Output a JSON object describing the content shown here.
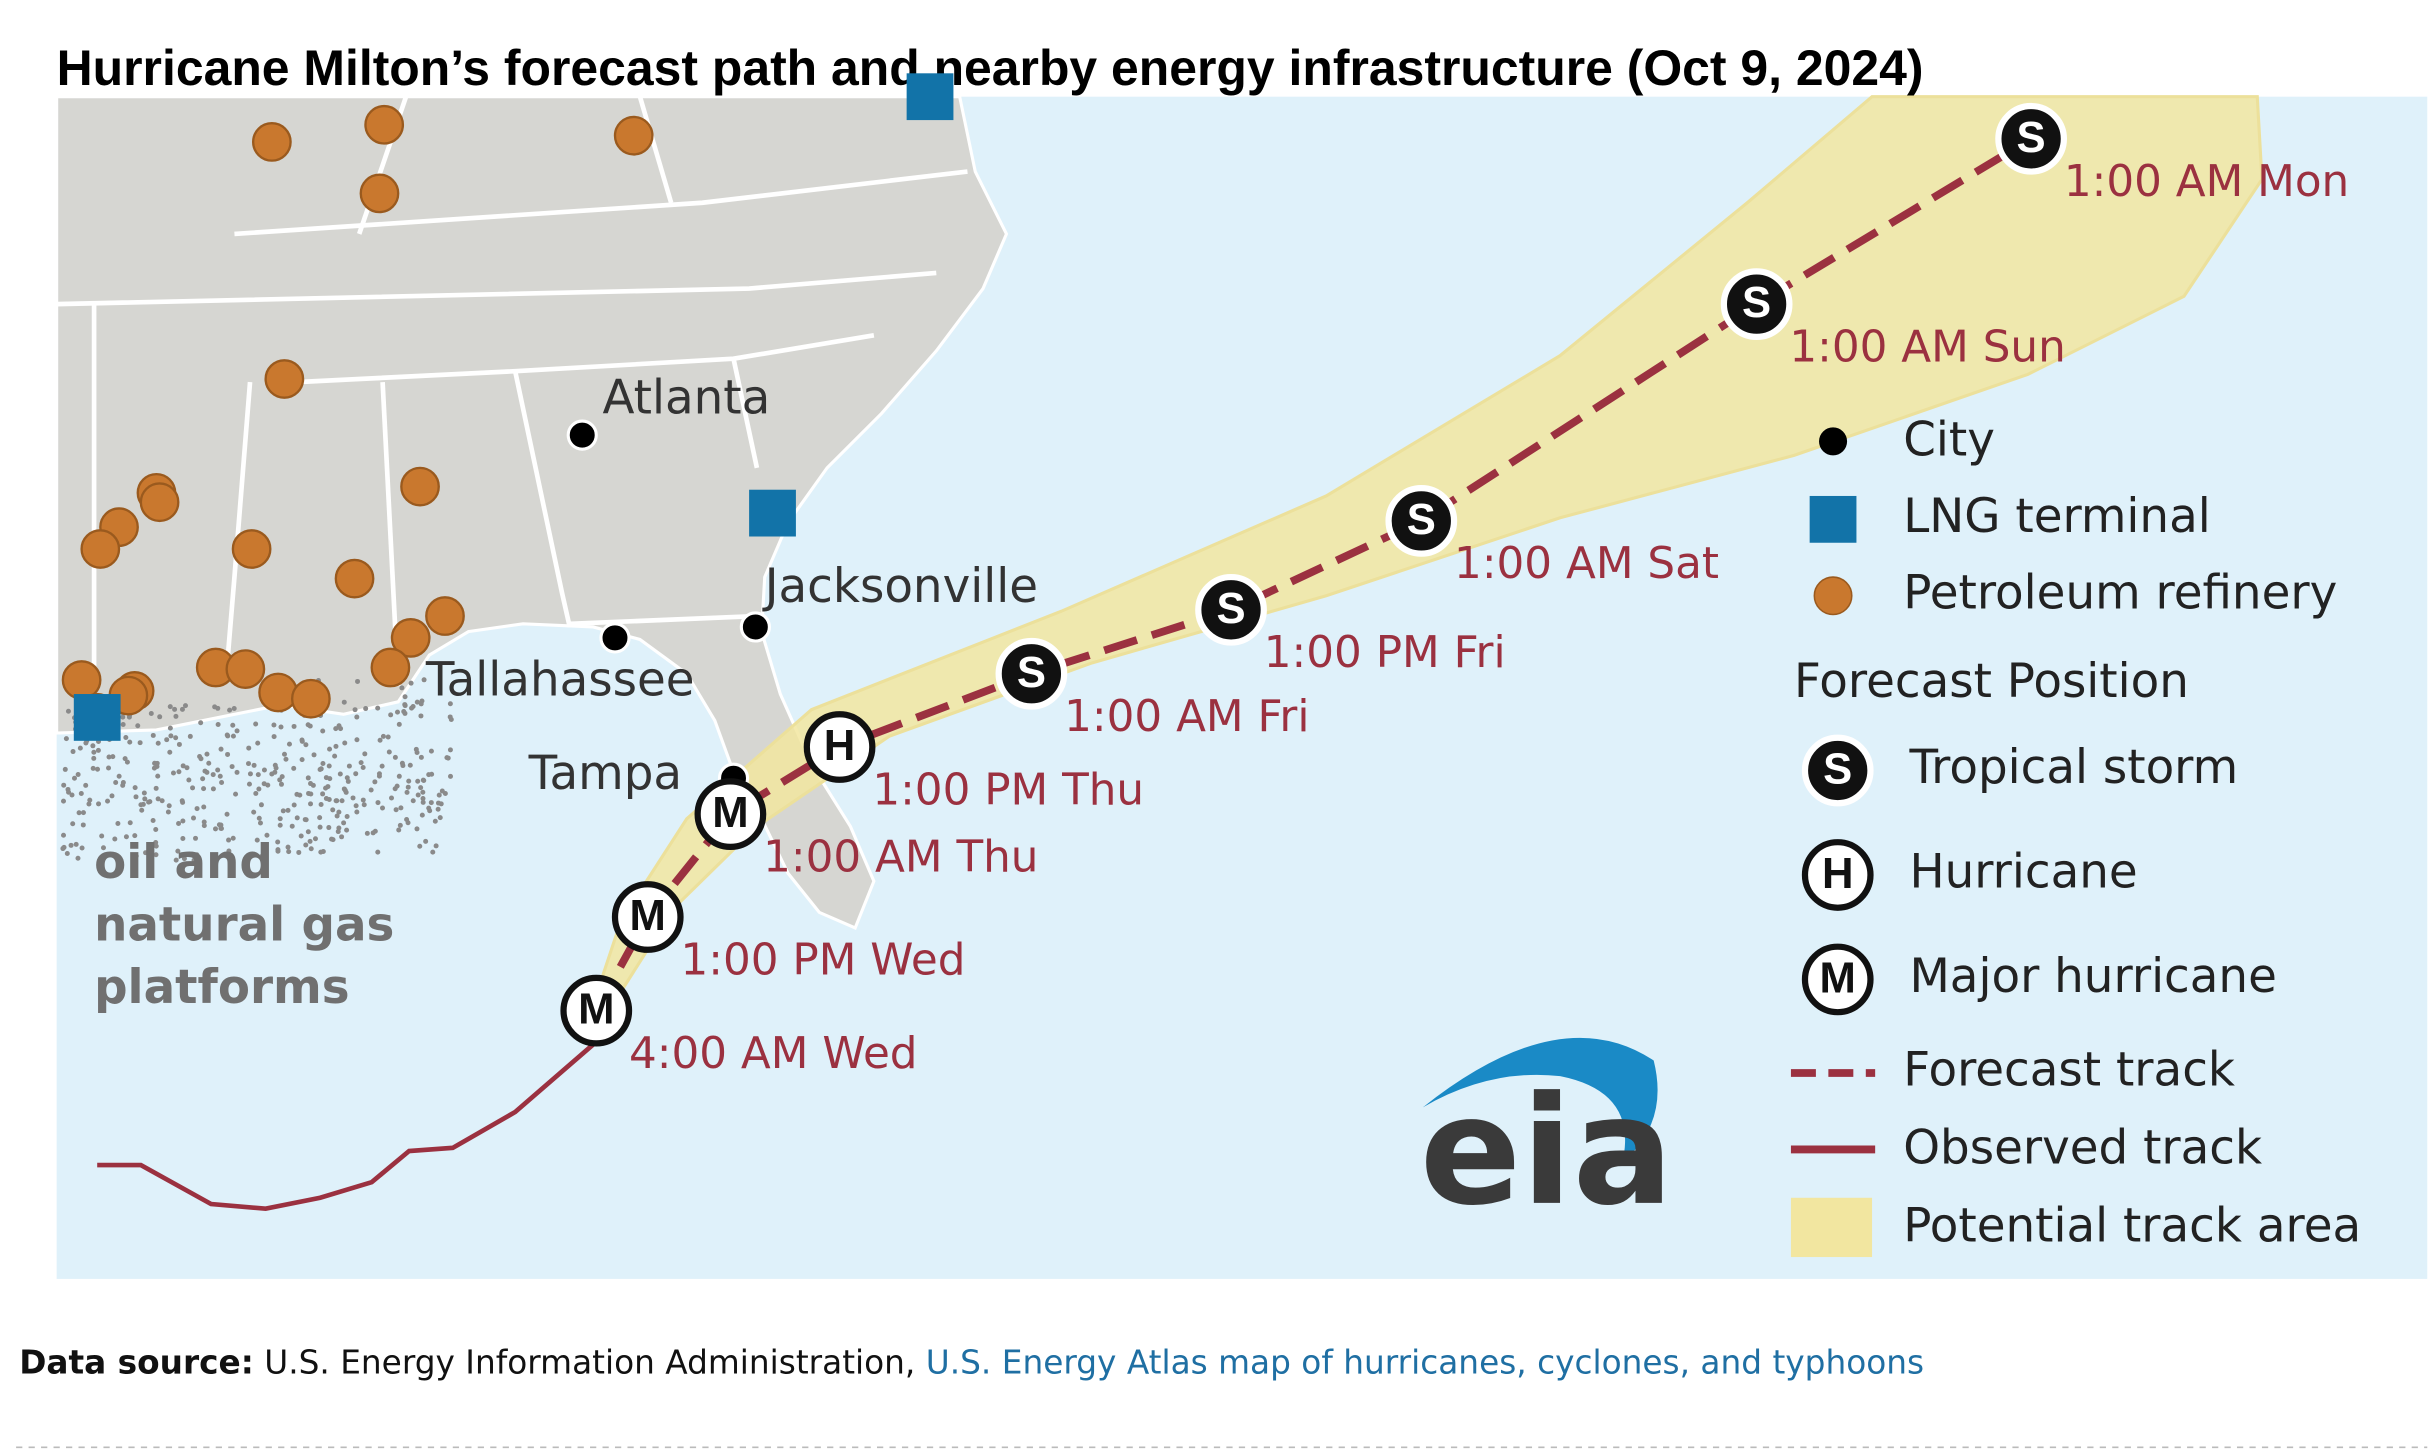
{
  "title": "Hurricane Milton’s forecast path and nearby energy infrastructure (Oct 9, 2024)",
  "map": {
    "cities": [
      "Atlanta",
      "Jacksonville",
      "Tallahassee",
      "Tampa"
    ],
    "platforms_label": [
      "oil and",
      "natural gas",
      "platforms"
    ],
    "forecast_positions": [
      {
        "symbol": "M",
        "time": "4:00 AM Wed"
      },
      {
        "symbol": "M",
        "time": "1:00 PM Wed"
      },
      {
        "symbol": "M",
        "time": "1:00 AM Thu"
      },
      {
        "symbol": "H",
        "time": "1:00 PM Thu"
      },
      {
        "symbol": "S",
        "time": "1:00 AM Fri"
      },
      {
        "symbol": "S",
        "time": "1:00 PM Fri"
      },
      {
        "symbol": "S",
        "time": "1:00 AM Sat"
      },
      {
        "symbol": "S",
        "time": "1:00 AM Sun"
      },
      {
        "symbol": "S",
        "time": "1:00 AM Mon"
      }
    ],
    "logo": "eia"
  },
  "legend": {
    "markers": [
      "City",
      "LNG terminal",
      "Petroleum refinery"
    ],
    "forecast_position_title": "Forecast Position",
    "positions": [
      {
        "symbol": "S",
        "label": "Tropical storm"
      },
      {
        "symbol": "H",
        "label": "Hurricane"
      },
      {
        "symbol": "M",
        "label": "Major hurricane"
      }
    ],
    "tracks": [
      "Forecast track",
      "Observed track",
      "Potential track area"
    ]
  },
  "source": {
    "label": "Data source:",
    "text": " U.S. Energy Information Administration,",
    "link": " U.S. Energy Atlas map of hurricanes, cyclones, and typhoons"
  }
}
